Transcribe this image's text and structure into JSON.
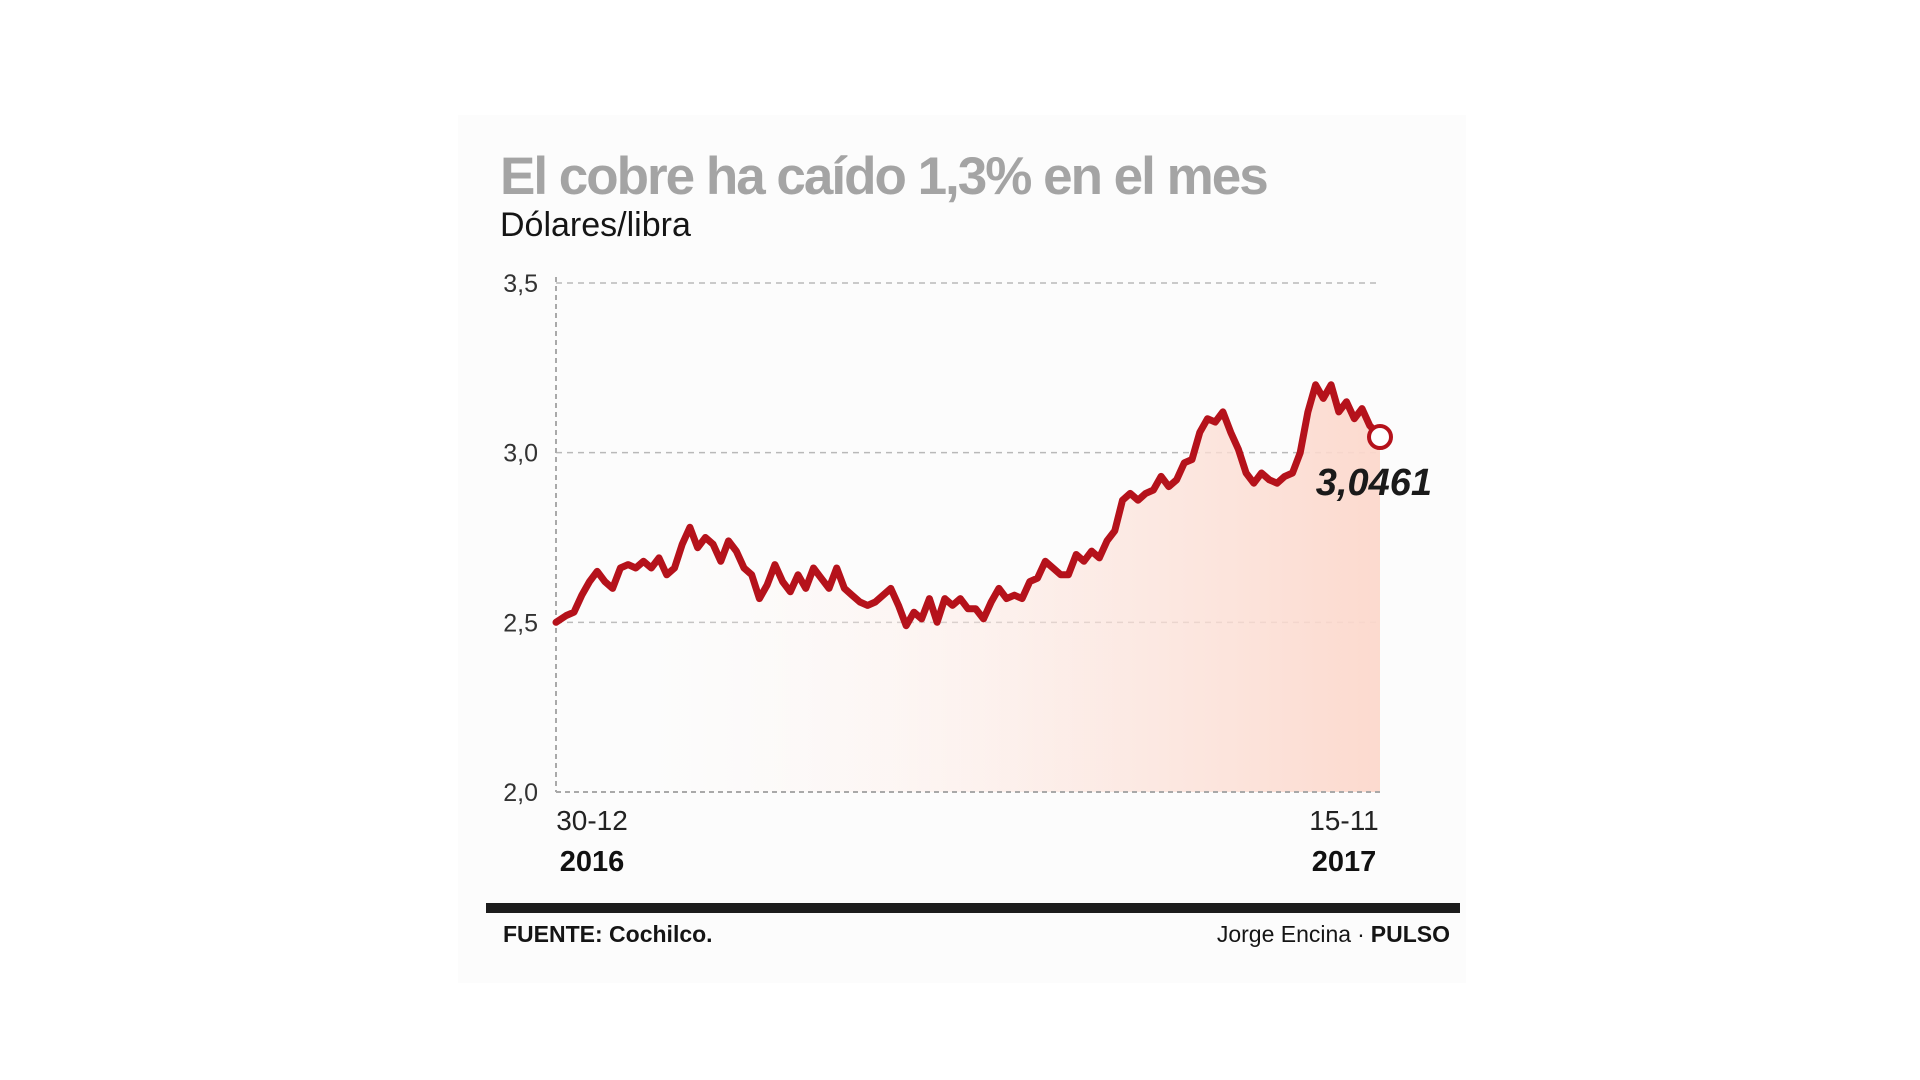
{
  "title": "El cobre ha caído 1,3% en el mes",
  "subtitle": "Dólares/libra",
  "footer": {
    "source": "FUENTE: Cochilco.",
    "author": "Jorge Encina",
    "separator": "·",
    "outlet": "PULSO"
  },
  "colors": {
    "line": "#b5121b",
    "title": "#a4a4a4",
    "area": "#fde4dc"
  },
  "chart_data": {
    "type": "line",
    "title": "El cobre ha caído 1,3% en el mes",
    "ylabel": "Dólares/libra",
    "xlabel": "",
    "ylim": [
      2.0,
      3.5
    ],
    "yticks": [
      2.0,
      2.5,
      3.0,
      3.5
    ],
    "ytick_labels": [
      "2,0",
      "2,5",
      "3,0",
      "3,5"
    ],
    "x_start": "2016-12-30",
    "x_end": "2017-11-15",
    "xtick_labels": [
      {
        "date": "30-12",
        "year": "2016"
      },
      {
        "date": "15-11",
        "year": "2017"
      }
    ],
    "grid": true,
    "series": [
      {
        "name": "",
        "points": [
          [
            "2016-12-30",
            2.5
          ],
          [
            "2017-01-03",
            2.52
          ],
          [
            "2017-01-06",
            2.53
          ],
          [
            "2017-01-09",
            2.58
          ],
          [
            "2017-01-12",
            2.62
          ],
          [
            "2017-01-15",
            2.65
          ],
          [
            "2017-01-18",
            2.62
          ],
          [
            "2017-01-21",
            2.6
          ],
          [
            "2017-01-24",
            2.66
          ],
          [
            "2017-01-27",
            2.67
          ],
          [
            "2017-01-30",
            2.66
          ],
          [
            "2017-02-02",
            2.68
          ],
          [
            "2017-02-05",
            2.66
          ],
          [
            "2017-02-08",
            2.69
          ],
          [
            "2017-02-11",
            2.64
          ],
          [
            "2017-02-14",
            2.66
          ],
          [
            "2017-02-17",
            2.73
          ],
          [
            "2017-02-20",
            2.78
          ],
          [
            "2017-02-23",
            2.72
          ],
          [
            "2017-02-26",
            2.75
          ],
          [
            "2017-03-01",
            2.73
          ],
          [
            "2017-03-04",
            2.68
          ],
          [
            "2017-03-07",
            2.74
          ],
          [
            "2017-03-10",
            2.71
          ],
          [
            "2017-03-13",
            2.66
          ],
          [
            "2017-03-16",
            2.64
          ],
          [
            "2017-03-19",
            2.57
          ],
          [
            "2017-03-22",
            2.61
          ],
          [
            "2017-03-25",
            2.67
          ],
          [
            "2017-03-28",
            2.62
          ],
          [
            "2017-03-31",
            2.59
          ],
          [
            "2017-04-03",
            2.64
          ],
          [
            "2017-04-06",
            2.6
          ],
          [
            "2017-04-09",
            2.66
          ],
          [
            "2017-04-12",
            2.63
          ],
          [
            "2017-04-15",
            2.6
          ],
          [
            "2017-04-18",
            2.66
          ],
          [
            "2017-04-21",
            2.6
          ],
          [
            "2017-04-24",
            2.58
          ],
          [
            "2017-04-27",
            2.56
          ],
          [
            "2017-04-30",
            2.55
          ],
          [
            "2017-05-03",
            2.56
          ],
          [
            "2017-05-06",
            2.58
          ],
          [
            "2017-05-09",
            2.6
          ],
          [
            "2017-05-12",
            2.55
          ],
          [
            "2017-05-15",
            2.49
          ],
          [
            "2017-05-18",
            2.53
          ],
          [
            "2017-05-21",
            2.51
          ],
          [
            "2017-05-24",
            2.57
          ],
          [
            "2017-05-27",
            2.5
          ],
          [
            "2017-05-30",
            2.57
          ],
          [
            "2017-06-02",
            2.55
          ],
          [
            "2017-06-05",
            2.57
          ],
          [
            "2017-06-08",
            2.54
          ],
          [
            "2017-06-11",
            2.54
          ],
          [
            "2017-06-14",
            2.51
          ],
          [
            "2017-06-17",
            2.56
          ],
          [
            "2017-06-20",
            2.6
          ],
          [
            "2017-06-23",
            2.57
          ],
          [
            "2017-06-26",
            2.58
          ],
          [
            "2017-06-29",
            2.57
          ],
          [
            "2017-07-02",
            2.62
          ],
          [
            "2017-07-05",
            2.63
          ],
          [
            "2017-07-08",
            2.68
          ],
          [
            "2017-07-11",
            2.66
          ],
          [
            "2017-07-14",
            2.64
          ],
          [
            "2017-07-17",
            2.64
          ],
          [
            "2017-07-20",
            2.7
          ],
          [
            "2017-07-23",
            2.68
          ],
          [
            "2017-07-26",
            2.71
          ],
          [
            "2017-07-29",
            2.69
          ],
          [
            "2017-08-01",
            2.74
          ],
          [
            "2017-08-04",
            2.77
          ],
          [
            "2017-08-07",
            2.86
          ],
          [
            "2017-08-10",
            2.88
          ],
          [
            "2017-08-13",
            2.86
          ],
          [
            "2017-08-16",
            2.88
          ],
          [
            "2017-08-19",
            2.89
          ],
          [
            "2017-08-22",
            2.93
          ],
          [
            "2017-08-25",
            2.9
          ],
          [
            "2017-08-28",
            2.92
          ],
          [
            "2017-08-31",
            2.97
          ],
          [
            "2017-09-03",
            2.98
          ],
          [
            "2017-09-06",
            3.06
          ],
          [
            "2017-09-09",
            3.1
          ],
          [
            "2017-09-12",
            3.09
          ],
          [
            "2017-09-15",
            3.12
          ],
          [
            "2017-09-18",
            3.06
          ],
          [
            "2017-09-21",
            3.01
          ],
          [
            "2017-09-24",
            2.94
          ],
          [
            "2017-09-27",
            2.91
          ],
          [
            "2017-09-30",
            2.94
          ],
          [
            "2017-10-03",
            2.92
          ],
          [
            "2017-10-06",
            2.91
          ],
          [
            "2017-10-09",
            2.93
          ],
          [
            "2017-10-12",
            2.94
          ],
          [
            "2017-10-15",
            3.0
          ],
          [
            "2017-10-18",
            3.12
          ],
          [
            "2017-10-21",
            3.2
          ],
          [
            "2017-10-24",
            3.16
          ],
          [
            "2017-10-27",
            3.2
          ],
          [
            "2017-10-30",
            3.12
          ],
          [
            "2017-11-02",
            3.15
          ],
          [
            "2017-11-05",
            3.1
          ],
          [
            "2017-11-08",
            3.13
          ],
          [
            "2017-11-11",
            3.08
          ],
          [
            "2017-11-15",
            3.0461
          ]
        ]
      }
    ],
    "last_value": 3.0461,
    "last_value_label": "3,0461"
  }
}
